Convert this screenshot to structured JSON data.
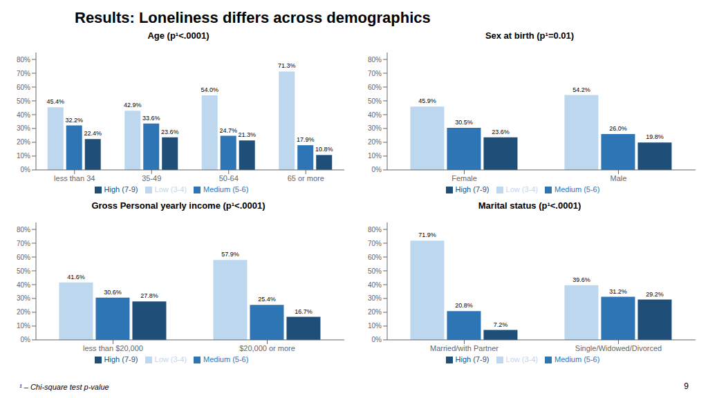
{
  "title": "Results: Loneliness differs across demographics",
  "annotations": [
    "¹ – Chi-square test p-value",
    "9"
  ],
  "chart_data": [
    {
      "type": "bar",
      "title": "Age (p¹<.0001)",
      "categories": [
        "less than 34",
        "35-49",
        "50-64",
        "65 or more"
      ],
      "series": [
        {
          "name": "Low (3-4)",
          "color": "#bdd7ee",
          "values": [
            45.4,
            42.9,
            54.0,
            71.3
          ],
          "value_labels": [
            "45.4%",
            "42.9%",
            "54.0%",
            "71.3%"
          ]
        },
        {
          "name": "Medium (5-6)",
          "color": "#2e75b6",
          "values": [
            32.2,
            33.6,
            24.7,
            17.9
          ],
          "value_labels": [
            "32.2%",
            "33.6%",
            "24.7%",
            "17.9%"
          ]
        },
        {
          "name": "High (7-9)",
          "color": "#1f4e79",
          "values": [
            22.4,
            23.6,
            21.3,
            10.8
          ],
          "value_labels": [
            "22.4%",
            "23.6%",
            "21.3%",
            "10.8%"
          ]
        }
      ],
      "ylim": [
        0,
        85
      ],
      "yticks": [
        {
          "value": 0,
          "label": "0%"
        },
        {
          "value": 10,
          "label": "10%"
        },
        {
          "value": 20,
          "label": "20%"
        },
        {
          "value": 30,
          "label": "30%"
        },
        {
          "value": 40,
          "label": "40%"
        },
        {
          "value": 50,
          "label": "50%"
        },
        {
          "value": 60,
          "label": "60%"
        },
        {
          "value": 70,
          "label": "70%"
        },
        {
          "value": 80,
          "label": "80%"
        }
      ],
      "grid": false,
      "legend": "bottom",
      "data_labels": true
    },
    {
      "type": "bar",
      "title": "Sex at birth (p¹=0.01)",
      "categories": [
        "Female",
        "Male"
      ],
      "series": [
        {
          "name": "Low (3-4)",
          "color": "#bdd7ee",
          "values": [
            45.9,
            54.2
          ],
          "value_labels": [
            "45.9%",
            "54.2%"
          ]
        },
        {
          "name": "Medium (5-6)",
          "color": "#2e75b6",
          "values": [
            30.5,
            26.0
          ],
          "value_labels": [
            "30.5%",
            "26.0%"
          ]
        },
        {
          "name": "High (7-9)",
          "color": "#1f4e79",
          "values": [
            23.6,
            19.8
          ],
          "value_labels": [
            "23.6%",
            "19.8%"
          ]
        }
      ],
      "ylim": [
        0,
        85
      ],
      "yticks": [
        {
          "value": 0,
          "label": "0%"
        },
        {
          "value": 10,
          "label": "10%"
        },
        {
          "value": 20,
          "label": "20%"
        },
        {
          "value": 30,
          "label": "30%"
        },
        {
          "value": 40,
          "label": "40%"
        },
        {
          "value": 50,
          "label": "50%"
        },
        {
          "value": 60,
          "label": "60%"
        },
        {
          "value": 70,
          "label": "70%"
        },
        {
          "value": 80,
          "label": "80%"
        }
      ],
      "grid": false,
      "legend": "bottom",
      "data_labels": true
    },
    {
      "type": "bar",
      "title": "Gross Personal yearly income (p¹<.0001)",
      "categories": [
        "less than $20,000",
        "$20,000 or more"
      ],
      "series": [
        {
          "name": "Low (3-4)",
          "color": "#bdd7ee",
          "values": [
            41.6,
            57.9
          ],
          "value_labels": [
            "41.6%",
            "57.9%"
          ]
        },
        {
          "name": "Medium (5-6)",
          "color": "#2e75b6",
          "values": [
            30.6,
            25.4
          ],
          "value_labels": [
            "30.6%",
            "25.4%"
          ]
        },
        {
          "name": "High (7-9)",
          "color": "#1f4e79",
          "values": [
            27.8,
            16.7
          ],
          "value_labels": [
            "27.8%",
            "16.7%"
          ]
        }
      ],
      "ylim": [
        0,
        85
      ],
      "yticks": [
        {
          "value": 0,
          "label": "0%"
        },
        {
          "value": 10,
          "label": "10%"
        },
        {
          "value": 20,
          "label": "20%"
        },
        {
          "value": 30,
          "label": "30%"
        },
        {
          "value": 40,
          "label": "40%"
        },
        {
          "value": 50,
          "label": "50%"
        },
        {
          "value": 60,
          "label": "60%"
        },
        {
          "value": 70,
          "label": "70%"
        },
        {
          "value": 80,
          "label": "80%"
        }
      ],
      "grid": false,
      "legend": "bottom",
      "data_labels": true
    },
    {
      "type": "bar",
      "title": "Marital status (p¹<.0001)",
      "categories": [
        "Married/with Partner",
        "Single/Widowed/Divorced"
      ],
      "series": [
        {
          "name": "Low (3-4)",
          "color": "#bdd7ee",
          "values": [
            71.9,
            39.6
          ],
          "value_labels": [
            "71.9%",
            "39.6%"
          ]
        },
        {
          "name": "Medium (5-6)",
          "color": "#2e75b6",
          "values": [
            20.8,
            31.2
          ],
          "value_labels": [
            "20.8%",
            "31.2%"
          ]
        },
        {
          "name": "High (7-9)",
          "color": "#1f4e79",
          "values": [
            7.2,
            29.2
          ],
          "value_labels": [
            "7.2%",
            "29.2%"
          ]
        }
      ],
      "ylim": [
        0,
        85
      ],
      "yticks": [
        {
          "value": 0,
          "label": "0%"
        },
        {
          "value": 10,
          "label": "10%"
        },
        {
          "value": 20,
          "label": "20%"
        },
        {
          "value": 30,
          "label": "30%"
        },
        {
          "value": 40,
          "label": "40%"
        },
        {
          "value": 50,
          "label": "50%"
        },
        {
          "value": 60,
          "label": "60%"
        },
        {
          "value": 70,
          "label": "70%"
        },
        {
          "value": 80,
          "label": "80%"
        }
      ],
      "grid": false,
      "legend": "bottom",
      "data_labels": true
    }
  ]
}
